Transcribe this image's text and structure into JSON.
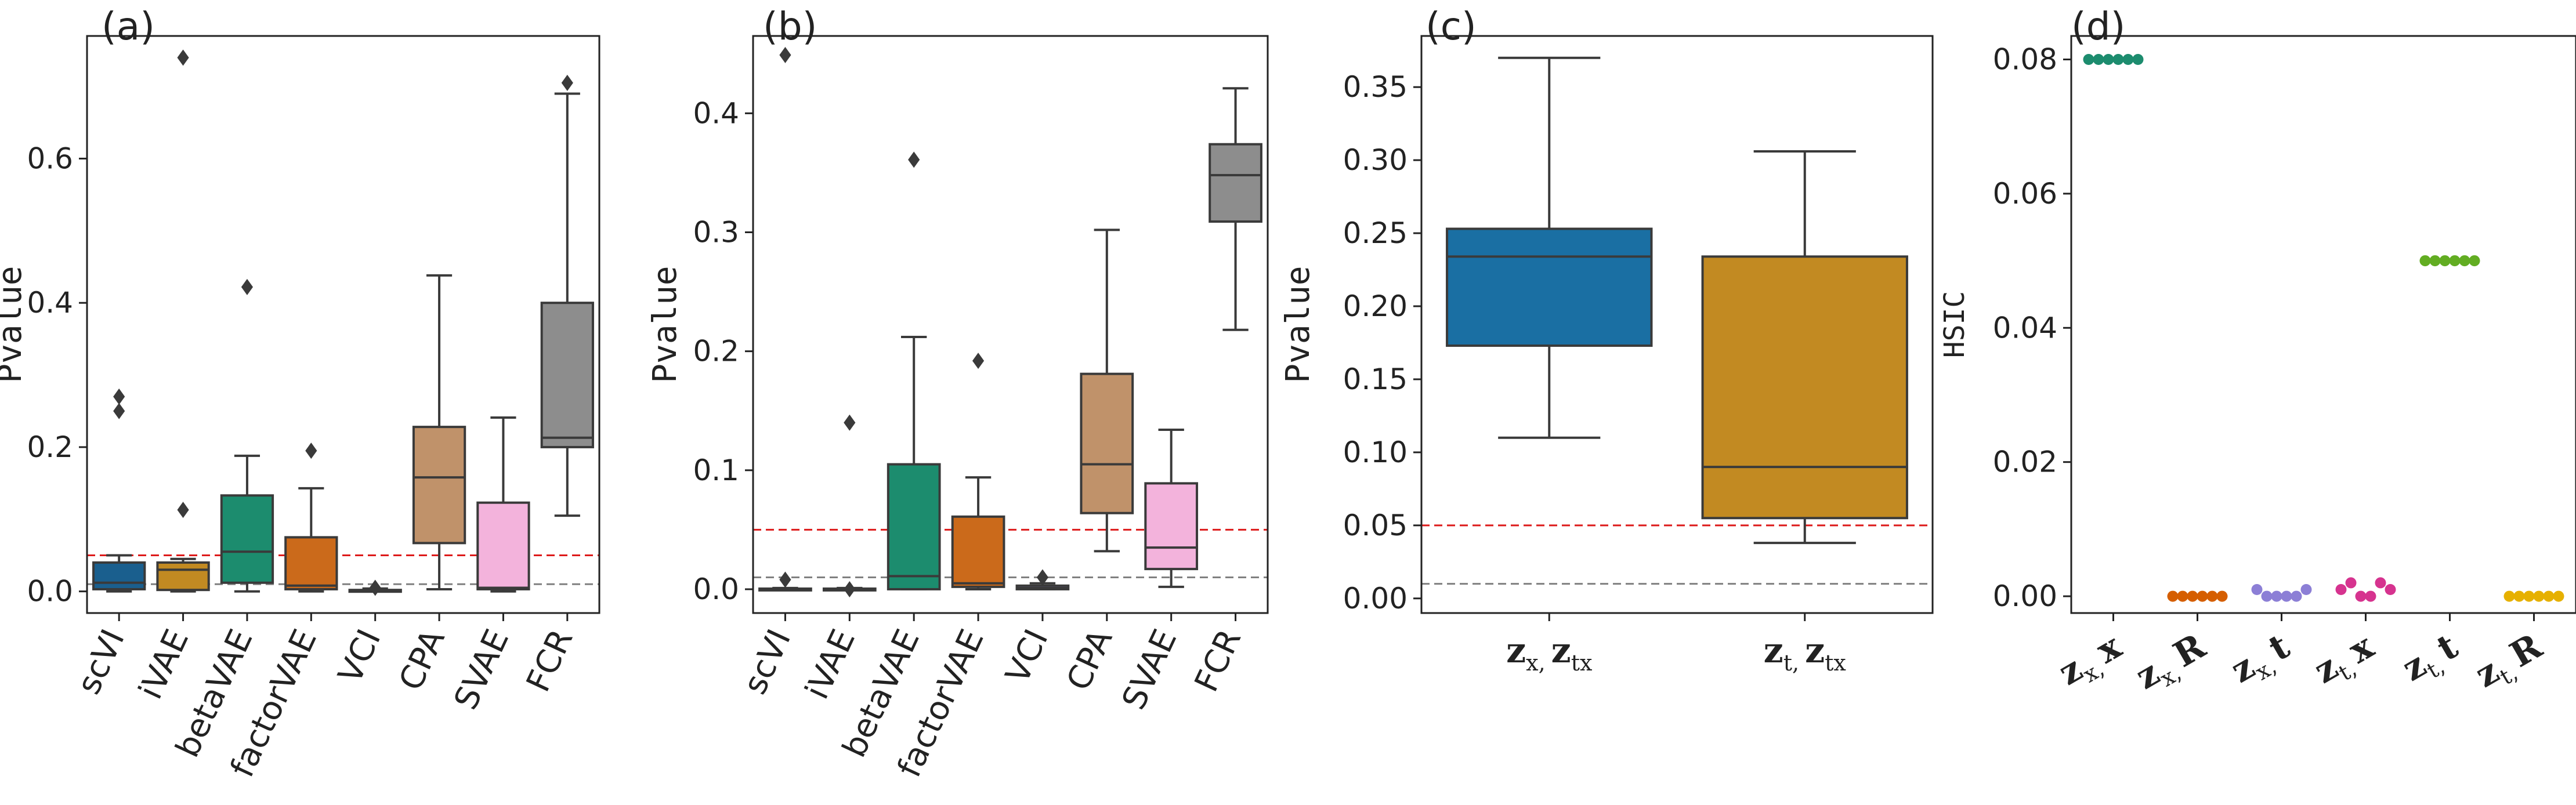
{
  "colors": {
    "teal": "#1c8c6e",
    "blue": "#1a6fa3",
    "orange": "#cb6a1b",
    "mustard": "#c28a22",
    "tan": "#c0926a",
    "pink": "#f3b3dc",
    "gray": "#8d8d8d",
    "darkblue": "#1a5f8e",
    "vermilion": "#d55e00",
    "lavender": "#8c7fd6",
    "magenta": "#d6338f",
    "lime": "#62ad22",
    "gold": "#e6b000",
    "ref_red": "#dd1a1a",
    "ref_gray": "#808080"
  },
  "chart_data": [
    {
      "panel_label": "(a)",
      "type": "box",
      "title": "",
      "ylabel": "Pvalue",
      "ylim": [
        -0.03,
        0.77
      ],
      "yticks": [
        0.0,
        0.2,
        0.4,
        0.6
      ],
      "ytick_labels": [
        "0.0",
        "0.2",
        "0.4",
        "0.6"
      ],
      "reference_lines": [
        {
          "value": 0.05,
          "color": "ref_red"
        },
        {
          "value": 0.01,
          "color": "ref_gray"
        }
      ],
      "categories": [
        "scVI",
        "iVAE",
        "betaVAE",
        "factorVAE",
        "VCI",
        "CPA",
        "SVAE",
        "FCR"
      ],
      "boxes": [
        {
          "name": "scVI",
          "color": "darkblue",
          "whisker_low": 0.0,
          "q1": 0.003,
          "median": 0.012,
          "q3": 0.04,
          "whisker_high": 0.05,
          "outliers": [
            0.25,
            0.27
          ]
        },
        {
          "name": "iVAE",
          "color": "mustard",
          "whisker_low": 0.0,
          "q1": 0.002,
          "median": 0.03,
          "q3": 0.04,
          "whisker_high": 0.045,
          "outliers": [
            0.113,
            0.74
          ]
        },
        {
          "name": "betaVAE",
          "color": "teal",
          "whisker_low": 0.0,
          "q1": 0.012,
          "median": 0.055,
          "q3": 0.133,
          "whisker_high": 0.188,
          "outliers": [
            0.422
          ]
        },
        {
          "name": "factorVAE",
          "color": "orange",
          "whisker_low": 0.0,
          "q1": 0.003,
          "median": 0.008,
          "q3": 0.075,
          "whisker_high": 0.143,
          "outliers": [
            0.195
          ]
        },
        {
          "name": "VCI",
          "color": "lavender",
          "whisker_low": 0.0,
          "q1": 0.0,
          "median": 0.001,
          "q3": 0.002,
          "whisker_high": 0.004,
          "outliers": [
            0.005
          ]
        },
        {
          "name": "CPA",
          "color": "tan",
          "whisker_low": 0.003,
          "q1": 0.067,
          "median": 0.158,
          "q3": 0.228,
          "whisker_high": 0.438,
          "outliers": []
        },
        {
          "name": "SVAE",
          "color": "pink",
          "whisker_low": 0.0,
          "q1": 0.003,
          "median": 0.005,
          "q3": 0.123,
          "whisker_high": 0.241,
          "outliers": []
        },
        {
          "name": "FCR",
          "color": "gray",
          "whisker_low": 0.105,
          "q1": 0.2,
          "median": 0.213,
          "q3": 0.4,
          "whisker_high": 0.69,
          "outliers": [
            0.705
          ]
        }
      ]
    },
    {
      "panel_label": "(b)",
      "type": "box",
      "title": "",
      "ylabel": "Pvalue",
      "ylim": [
        -0.02,
        0.465
      ],
      "yticks": [
        0.0,
        0.1,
        0.2,
        0.3,
        0.4
      ],
      "ytick_labels": [
        "0.0",
        "0.1",
        "0.2",
        "0.3",
        "0.4"
      ],
      "reference_lines": [
        {
          "value": 0.05,
          "color": "ref_red"
        },
        {
          "value": 0.01,
          "color": "ref_gray"
        }
      ],
      "categories": [
        "scVI",
        "iVAE",
        "betaVAE",
        "factorVAE",
        "VCI",
        "CPA",
        "SVAE",
        "FCR"
      ],
      "boxes": [
        {
          "name": "scVI",
          "color": "darkblue",
          "whisker_low": 0.0,
          "q1": 0.0,
          "median": 0.0,
          "q3": 0.0005,
          "whisker_high": 0.001,
          "outliers": [
            0.008,
            0.449
          ]
        },
        {
          "name": "iVAE",
          "color": "mustard",
          "whisker_low": 0.0,
          "q1": 0.0,
          "median": 0.0,
          "q3": 0.0005,
          "whisker_high": 0.001,
          "outliers": [
            0.0,
            0.14
          ]
        },
        {
          "name": "betaVAE",
          "color": "teal",
          "whisker_low": 0.0,
          "q1": 0.0,
          "median": 0.011,
          "q3": 0.105,
          "whisker_high": 0.212,
          "outliers": [
            0.361
          ]
        },
        {
          "name": "factorVAE",
          "color": "orange",
          "whisker_low": 0.0,
          "q1": 0.002,
          "median": 0.005,
          "q3": 0.061,
          "whisker_high": 0.094,
          "outliers": [
            0.192
          ]
        },
        {
          "name": "VCI",
          "color": "lavender",
          "whisker_low": 0.0,
          "q1": 0.0,
          "median": 0.001,
          "q3": 0.003,
          "whisker_high": 0.005,
          "outliers": [
            0.01
          ]
        },
        {
          "name": "CPA",
          "color": "tan",
          "whisker_low": 0.032,
          "q1": 0.064,
          "median": 0.105,
          "q3": 0.181,
          "whisker_high": 0.302,
          "outliers": []
        },
        {
          "name": "SVAE",
          "color": "pink",
          "whisker_low": 0.002,
          "q1": 0.017,
          "median": 0.035,
          "q3": 0.089,
          "whisker_high": 0.134,
          "outliers": []
        },
        {
          "name": "FCR",
          "color": "gray",
          "whisker_low": 0.218,
          "q1": 0.309,
          "median": 0.348,
          "q3": 0.374,
          "whisker_high": 0.421,
          "outliers": []
        }
      ]
    },
    {
      "panel_label": "(c)",
      "type": "box",
      "title": "",
      "ylabel": "Pvalue",
      "ylim": [
        -0.01,
        0.385
      ],
      "yticks": [
        0.0,
        0.05,
        0.1,
        0.15,
        0.2,
        0.25,
        0.3,
        0.35
      ],
      "ytick_labels": [
        "0.00",
        "0.05",
        "0.10",
        "0.15",
        "0.20",
        "0.25",
        "0.30",
        "0.35"
      ],
      "reference_lines": [
        {
          "value": 0.05,
          "color": "ref_red"
        },
        {
          "value": 0.01,
          "color": "ref_gray"
        }
      ],
      "categories": [
        {
          "a": "z",
          "a_sub": "x,",
          "b": "z",
          "b_sub": "tx"
        },
        {
          "a": "z",
          "a_sub": "t,",
          "b": "z",
          "b_sub": "tx"
        }
      ],
      "boxes": [
        {
          "name": "z_x, z_tx",
          "color": "blue",
          "whisker_low": 0.11,
          "q1": 0.173,
          "median": 0.234,
          "q3": 0.253,
          "whisker_high": 0.37,
          "outliers": []
        },
        {
          "name": "z_t, z_tx",
          "color": "mustard",
          "whisker_low": 0.038,
          "q1": 0.055,
          "median": 0.09,
          "q3": 0.234,
          "whisker_high": 0.306,
          "outliers": []
        }
      ]
    },
    {
      "panel_label": "(d)",
      "type": "strip",
      "title": "",
      "ylabel": "HSIC",
      "ylim": [
        -0.0025,
        0.0835
      ],
      "yticks": [
        0.0,
        0.02,
        0.04,
        0.06,
        0.08
      ],
      "ytick_labels": [
        "0.00",
        "0.02",
        "0.04",
        "0.06",
        "0.08"
      ],
      "categories": [
        {
          "a": "z",
          "a_sub": "x,",
          "b": "x"
        },
        {
          "a": "z",
          "a_sub": "x,",
          "b": "R"
        },
        {
          "a": "z",
          "a_sub": "x,",
          "b": "t"
        },
        {
          "a": "z",
          "a_sub": "t,",
          "b": "x"
        },
        {
          "a": "z",
          "a_sub": "t,",
          "b": "t"
        },
        {
          "a": "z",
          "a_sub": "t,",
          "b": "R"
        }
      ],
      "series": [
        {
          "name": "z_x, x",
          "color": "teal",
          "values": [
            0.08,
            0.08,
            0.08,
            0.08,
            0.08,
            0.08
          ]
        },
        {
          "name": "z_x, R",
          "color": "vermilion",
          "values": [
            0.0,
            0.0,
            0.0,
            0.0,
            0.0,
            0.0
          ]
        },
        {
          "name": "z_x, t",
          "color": "lavender",
          "values": [
            0.001,
            0.0,
            0.0,
            0.0,
            0.0,
            0.001
          ]
        },
        {
          "name": "z_t, x",
          "color": "magenta",
          "values": [
            0.001,
            0.002,
            0.0,
            0.0,
            0.002,
            0.001
          ]
        },
        {
          "name": "z_t, t",
          "color": "lime",
          "values": [
            0.05,
            0.05,
            0.05,
            0.05,
            0.05,
            0.05
          ]
        },
        {
          "name": "z_t, R",
          "color": "gold",
          "values": [
            0.0,
            0.0,
            0.0,
            0.0,
            0.0,
            0.0
          ]
        }
      ]
    }
  ]
}
